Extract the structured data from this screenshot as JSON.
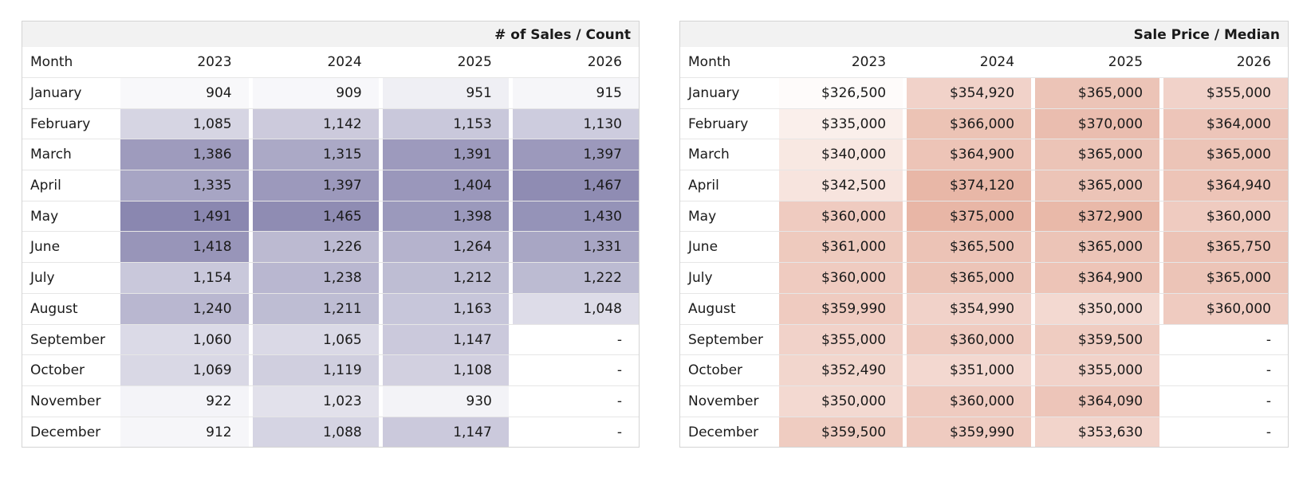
{
  "colors": {
    "sales_heat": "#8a87b0",
    "price_heat": "#e8b6a6"
  },
  "tables": [
    {
      "id": "sales",
      "title": "# of Sales / Count",
      "month_header": "Month",
      "years": [
        "2023",
        "2024",
        "2025",
        "2026"
      ],
      "col_widths": [
        162,
        160,
        160,
        160
      ],
      "months": [
        "January",
        "February",
        "March",
        "April",
        "May",
        "June",
        "July",
        "August",
        "September",
        "October",
        "November",
        "December"
      ],
      "display": [
        [
          "904",
          "909",
          "951",
          "915"
        ],
        [
          "1,085",
          "1,142",
          "1,153",
          "1,130"
        ],
        [
          "1,386",
          "1,315",
          "1,391",
          "1,397"
        ],
        [
          "1,335",
          "1,397",
          "1,404",
          "1,467"
        ],
        [
          "1,491",
          "1,465",
          "1,398",
          "1,430"
        ],
        [
          "1,418",
          "1,226",
          "1,264",
          "1,331"
        ],
        [
          "1,154",
          "1,238",
          "1,212",
          "1,222"
        ],
        [
          "1,240",
          "1,211",
          "1,163",
          "1,048"
        ],
        [
          "1,060",
          "1,065",
          "1,147",
          "-"
        ],
        [
          "1,069",
          "1,119",
          "1,108",
          "-"
        ],
        [
          "922",
          "1,023",
          "930",
          "-"
        ],
        [
          "912",
          "1,088",
          "1,147",
          "-"
        ]
      ],
      "values": [
        [
          904,
          909,
          951,
          915
        ],
        [
          1085,
          1142,
          1153,
          1130
        ],
        [
          1386,
          1315,
          1391,
          1397
        ],
        [
          1335,
          1397,
          1404,
          1467
        ],
        [
          1491,
          1465,
          1398,
          1430
        ],
        [
          1418,
          1226,
          1264,
          1331
        ],
        [
          1154,
          1238,
          1212,
          1222
        ],
        [
          1240,
          1211,
          1163,
          1048
        ],
        [
          1060,
          1065,
          1147,
          null
        ],
        [
          1069,
          1119,
          1108,
          null
        ],
        [
          922,
          1023,
          930,
          null
        ],
        [
          912,
          1088,
          1147,
          null
        ]
      ]
    },
    {
      "id": "price",
      "title": "Sale Price / Median",
      "month_header": "Month",
      "years": [
        "2023",
        "2024",
        "2025",
        "2026"
      ],
      "col_widths": [
        156,
        157,
        157,
        157
      ],
      "months": [
        "January",
        "February",
        "March",
        "April",
        "May",
        "June",
        "July",
        "August",
        "September",
        "October",
        "November",
        "December"
      ],
      "display": [
        [
          "$326,500",
          "$354,920",
          "$365,000",
          "$355,000"
        ],
        [
          "$335,000",
          "$366,000",
          "$370,000",
          "$364,000"
        ],
        [
          "$340,000",
          "$364,900",
          "$365,000",
          "$365,000"
        ],
        [
          "$342,500",
          "$374,120",
          "$365,000",
          "$364,940"
        ],
        [
          "$360,000",
          "$375,000",
          "$372,900",
          "$360,000"
        ],
        [
          "$361,000",
          "$365,500",
          "$365,000",
          "$365,750"
        ],
        [
          "$360,000",
          "$365,000",
          "$364,900",
          "$365,000"
        ],
        [
          "$359,990",
          "$354,990",
          "$350,000",
          "$360,000"
        ],
        [
          "$355,000",
          "$360,000",
          "$359,500",
          "-"
        ],
        [
          "$352,490",
          "$351,000",
          "$355,000",
          "-"
        ],
        [
          "$350,000",
          "$360,000",
          "$364,090",
          "-"
        ],
        [
          "$359,500",
          "$359,990",
          "$353,630",
          "-"
        ]
      ],
      "values": [
        [
          326500,
          354920,
          365000,
          355000
        ],
        [
          335000,
          366000,
          370000,
          364000
        ],
        [
          340000,
          364900,
          365000,
          365000
        ],
        [
          342500,
          374120,
          365000,
          364940
        ],
        [
          360000,
          375000,
          372900,
          360000
        ],
        [
          361000,
          365500,
          365000,
          365750
        ],
        [
          360000,
          365000,
          364900,
          365000
        ],
        [
          359990,
          354990,
          350000,
          360000
        ],
        [
          355000,
          360000,
          359500,
          null
        ],
        [
          352490,
          351000,
          355000,
          null
        ],
        [
          350000,
          360000,
          364090,
          null
        ],
        [
          359500,
          359990,
          353630,
          null
        ]
      ]
    }
  ],
  "chart_data": [
    {
      "type": "heatmap",
      "title": "# of Sales / Count",
      "row_header": "Month",
      "columns": [
        "2023",
        "2024",
        "2025",
        "2026"
      ],
      "rows": [
        "January",
        "February",
        "March",
        "April",
        "May",
        "June",
        "July",
        "August",
        "September",
        "October",
        "November",
        "December"
      ],
      "values": [
        [
          904,
          909,
          951,
          915
        ],
        [
          1085,
          1142,
          1153,
          1130
        ],
        [
          1386,
          1315,
          1391,
          1397
        ],
        [
          1335,
          1397,
          1404,
          1467
        ],
        [
          1491,
          1465,
          1398,
          1430
        ],
        [
          1418,
          1226,
          1264,
          1331
        ],
        [
          1154,
          1238,
          1212,
          1222
        ],
        [
          1240,
          1211,
          1163,
          1048
        ],
        [
          1060,
          1065,
          1147,
          null
        ],
        [
          1069,
          1119,
          1108,
          null
        ],
        [
          922,
          1023,
          930,
          null
        ],
        [
          912,
          1088,
          1147,
          null
        ]
      ]
    },
    {
      "type": "heatmap",
      "title": "Sale Price / Median",
      "row_header": "Month",
      "columns": [
        "2023",
        "2024",
        "2025",
        "2026"
      ],
      "rows": [
        "January",
        "February",
        "March",
        "April",
        "May",
        "June",
        "July",
        "August",
        "September",
        "October",
        "November",
        "December"
      ],
      "values": [
        [
          326500,
          354920,
          365000,
          355000
        ],
        [
          335000,
          366000,
          370000,
          364000
        ],
        [
          340000,
          364900,
          365000,
          365000
        ],
        [
          342500,
          374120,
          365000,
          364940
        ],
        [
          360000,
          375000,
          372900,
          360000
        ],
        [
          361000,
          365500,
          365000,
          365750
        ],
        [
          360000,
          365000,
          364900,
          365000
        ],
        [
          359990,
          354990,
          350000,
          360000
        ],
        [
          355000,
          360000,
          359500,
          null
        ],
        [
          352490,
          351000,
          355000,
          null
        ],
        [
          350000,
          360000,
          364090,
          null
        ],
        [
          359500,
          359990,
          353630,
          null
        ]
      ]
    }
  ]
}
